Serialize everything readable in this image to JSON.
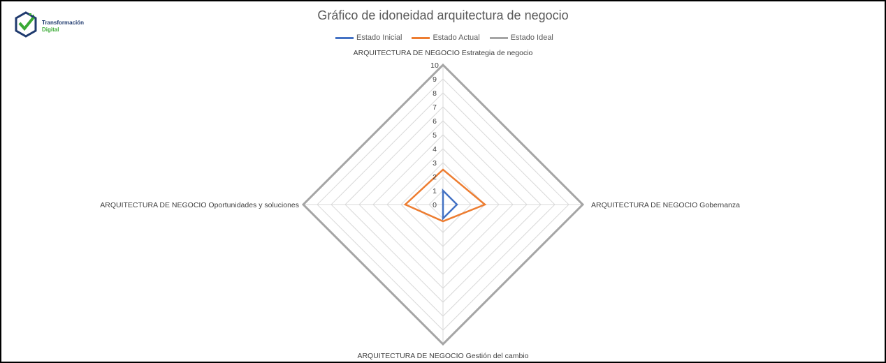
{
  "logo": {
    "line1": "Transformación",
    "line2": "Digital"
  },
  "chart_data": {
    "type": "radar",
    "title": "Gráfico de idoneidad arquitectura de negocio",
    "categories": [
      "ARQUITECTURA DE NEGOCIO Estrategia de negocio",
      "ARQUITECTURA DE NEGOCIO Gobernanza",
      "ARQUITECTURA DE NEGOCIO Gestión del cambio",
      "ARQUITECTURA DE NEGOCIO Oportunidades y soluciones"
    ],
    "series": [
      {
        "name": "Estado Inicial",
        "color": "#4472c4",
        "values": [
          1,
          1,
          1,
          0
        ]
      },
      {
        "name": "Estado Actual",
        "color": "#ed7d31",
        "values": [
          2.5,
          3,
          1.2,
          2.7
        ]
      },
      {
        "name": "Estado Ideal",
        "color": "#a5a5a5",
        "values": [
          10,
          10,
          10,
          10
        ]
      }
    ],
    "rlim": [
      0,
      10
    ],
    "ticks": [
      "0",
      "1",
      "2",
      "3",
      "4",
      "5",
      "6",
      "7",
      "8",
      "9",
      "10"
    ],
    "grid": true,
    "legend_position": "top"
  }
}
